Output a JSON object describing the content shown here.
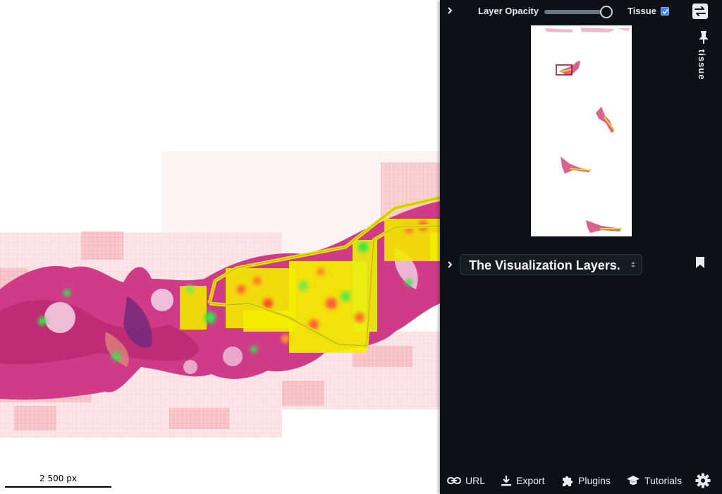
{
  "viewer": {
    "scale_bar_label": "2 500 px"
  },
  "panel": {
    "layer_opacity_label": "Layer Opacity",
    "layer_opacity_value": 0.9,
    "tissue_label": "Tissue",
    "tissue_checked": true,
    "vertical_tab_label": "tissue",
    "layers_select_value": "The Visualization Layers.",
    "footer": {
      "url_label": "URL",
      "export_label": "Export",
      "plugins_label": "Plugins",
      "tutorials_label": "Tutorials"
    }
  },
  "colors": {
    "panel_bg": "#0d1117",
    "annotation_yellow": "#e8e20a",
    "heatmap_yellow": "#f5f000",
    "heatmap_green": "#2ee84a",
    "tissue_pink": "#d43a8a",
    "navigator_region": "#b3001b",
    "checkbox_blue": "#3b82f6"
  },
  "icons": {
    "collapse_top": "chevron-right-icon",
    "swap": "swap-horizontal-icon",
    "pin": "pin-icon",
    "collapse_layers": "chevron-right-icon",
    "bookmark": "bookmark-icon",
    "select_arrows": "select-arrows-icon",
    "url": "link-icon",
    "export": "download-icon",
    "plugins": "puzzle-icon",
    "tutorials": "graduation-cap-icon",
    "settings": "gear-icon"
  }
}
